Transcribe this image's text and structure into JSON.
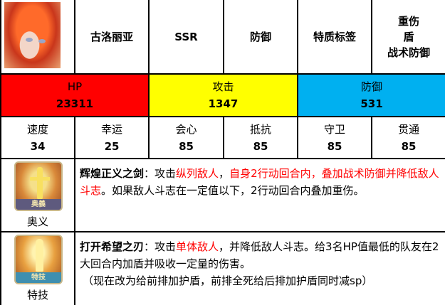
{
  "header": {
    "name": "古洛丽亚",
    "rarity": "SSR",
    "class": "防御",
    "trait_label": "特质标签",
    "traits": [
      "重伤",
      "盾",
      "战术防御"
    ]
  },
  "main_stats": [
    {
      "label": "HP",
      "value": "23311",
      "color": "#ff0000"
    },
    {
      "label": "攻击",
      "value": "1347",
      "color": "#ffff00"
    },
    {
      "label": "防御",
      "value": "531",
      "color": "#00b0f0"
    }
  ],
  "sub_stats": [
    {
      "label": "速度",
      "value": "34"
    },
    {
      "label": "幸运",
      "value": "25"
    },
    {
      "label": "会心",
      "value": "85"
    },
    {
      "label": "抵抗",
      "value": "85"
    },
    {
      "label": "守卫",
      "value": "85"
    },
    {
      "label": "贯通",
      "value": "85"
    }
  ],
  "skills": [
    {
      "type": "奥义",
      "badge": "奥義",
      "name": "辉煌正义之剑",
      "sep": "：攻击",
      "r1": "纵列敌人",
      "t1": "，",
      "r2": "自身2行动回合内，叠加战术防御并降低敌人斗志",
      "t2": "。如果敌人斗志在一定值以下，2行动回合内叠加重伤。",
      "note": ""
    },
    {
      "type": "特技",
      "badge": "特技",
      "name": "打开希望之刃",
      "sep": "：攻击",
      "r1": "单体敌人",
      "t1": "，并降低敌人斗志。给3名HP值最低的队友在2大回合内加盾并吸收一定量的伤害。",
      "r2": "",
      "t2": "",
      "note": "（现在改为给前排加护盾，前排全死给后排加护盾同时减sp）"
    }
  ]
}
